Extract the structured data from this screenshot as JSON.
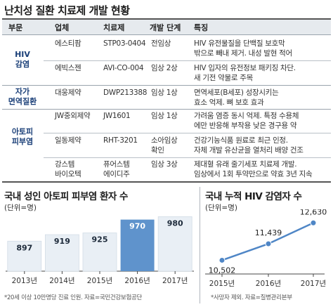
{
  "table": {
    "title": "난치성 질환 치료제 개발 현황",
    "headers": [
      "부문",
      "업체",
      "치료제",
      "개발 단계",
      "특징"
    ],
    "groups": [
      {
        "category": "HIV\n감염",
        "rows": [
          {
            "company": "에스티팜",
            "drug": "STP03-0404",
            "stage": "전임상",
            "features": [
              "HIV 유전물질을 단백질 보호막",
              "밖으로 빼내 제거. 내성 발현 적어"
            ]
          },
          {
            "company": "에빅스젠",
            "drug": "AVI-CO-004",
            "stage": "임상 2상",
            "features": [
              "HIV 입자의 유전정보 패키징 차단.",
              "새 기전 약물로 주목"
            ]
          }
        ]
      },
      {
        "category": "자가\n면역질환",
        "rows": [
          {
            "company": "대웅제약",
            "drug": "DWP213388",
            "stage": "임상 1상",
            "features": [
              "면역세포(B세포) 성장시키는",
              "효소 억제. 뼈 보호 효과"
            ]
          }
        ]
      },
      {
        "category": "아토피\n피부염",
        "rows": [
          {
            "company": "JW중외제약",
            "drug": "JW1601",
            "stage": "임상 1상",
            "features": [
              "가려움 염증 동시 억제. 특정 수용체",
              "에만 반응해 부작용 낮은 경구용 약"
            ]
          },
          {
            "company": "일동제약",
            "drug": "RHT-3201",
            "stage": "소아임상\n확인",
            "features": [
              "건강기능식품 원료로 최근 인정.",
              "자체 개발 유산균을 열처리 배양 건조"
            ]
          },
          {
            "company": "강스템\n바이오텍",
            "drug": "퓨어스템\n에이디주",
            "stage": "임상 3상",
            "features": [
              "제대혈 유래 줄기세포 치료제 개발.",
              "임상에서 1회 투약만으로 약효 3년 지속"
            ]
          }
        ]
      }
    ]
  },
  "chart_data": [
    {
      "type": "bar",
      "title": "국내 성인 아토피 피부염 환자 수",
      "unit": "(단위=명)",
      "categories": [
        "2013년",
        "2014년",
        "2015년",
        "2016년",
        "2017년"
      ],
      "values": [
        897,
        919,
        925,
        970,
        980
      ],
      "colors": [
        "#e9eff5",
        "#e9eff5",
        "#e9eff5",
        "#e9eff5",
        "#e9eff5"
      ],
      "label_colors": [
        "#1d2a3a",
        "#1d2a3a",
        "#1d2a3a",
        "#ffffff",
        "#1d2a3a"
      ],
      "highlight_index": 3,
      "highlight_color": "#5f93cc",
      "footnote": "*20세 이상 10만명당 진료 인원. 자료=국민건강보험공단"
    },
    {
      "type": "line",
      "title": "국내 누적 HIV 감염자 수",
      "unit": "(단위=명)",
      "categories": [
        "2015년",
        "2016년",
        "2017년"
      ],
      "values": [
        10502,
        11439,
        12630
      ],
      "value_labels": [
        "10,502",
        "11,439",
        "12,630"
      ],
      "line_color": "#4f86c6",
      "footnote": "*사망자 제외. 자료=질병관리본부"
    }
  ]
}
